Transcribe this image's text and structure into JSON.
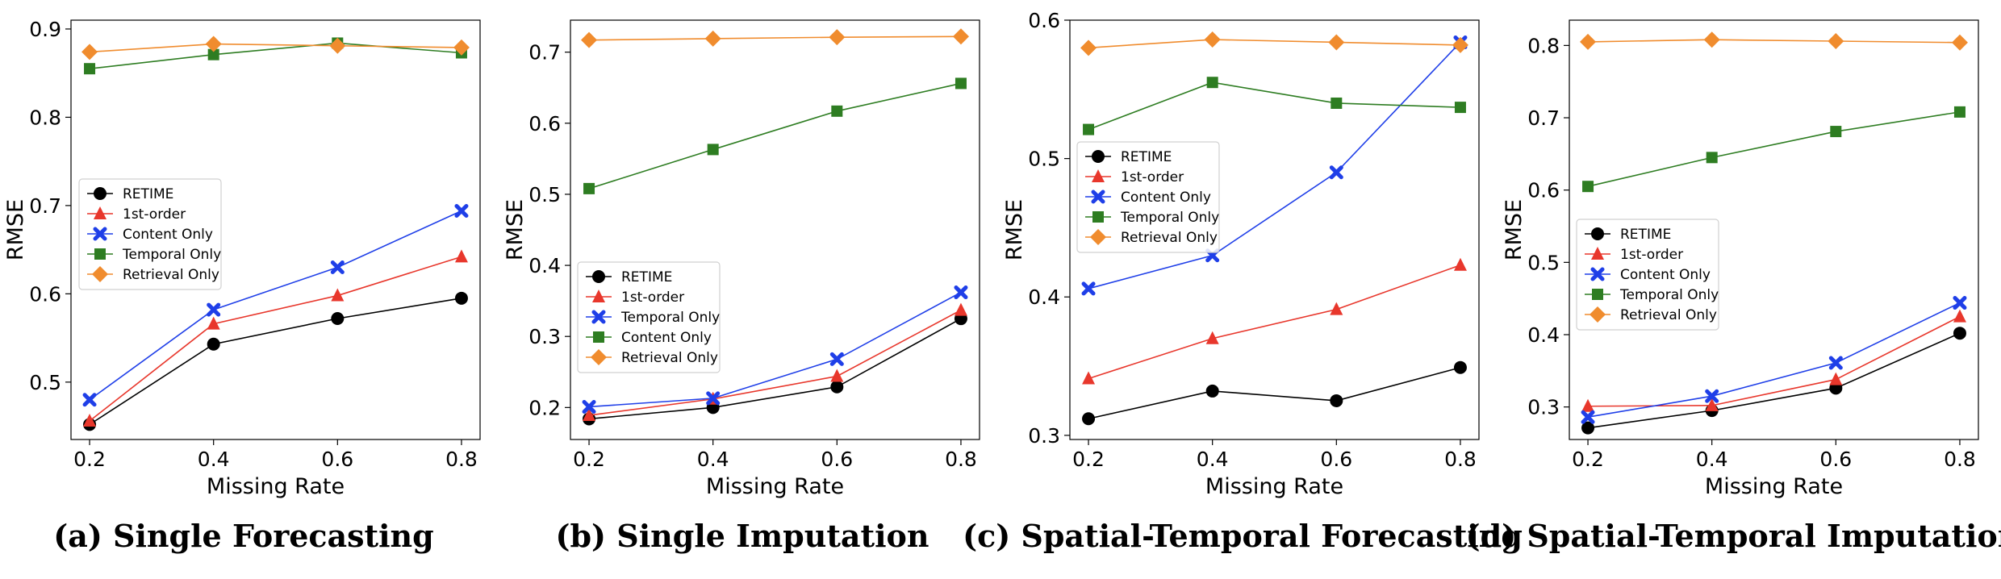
{
  "chart_data": [
    {
      "type": "line",
      "caption": "(a) Single Forecasting",
      "xlabel": "Missing Rate",
      "ylabel": "RMSE",
      "x": [
        0.2,
        0.4,
        0.6,
        0.8
      ],
      "x_ticks": [
        "0.2",
        "0.4",
        "0.6",
        "0.8"
      ],
      "xlim": [
        0.17,
        0.83
      ],
      "ylim": [
        0.435,
        0.91
      ],
      "y_ticks": [
        "0.5",
        "0.6",
        "0.7",
        "0.8",
        "0.9"
      ],
      "legend_position": "center-left",
      "series": [
        {
          "name": "RETIME",
          "values": [
            0.452,
            0.543,
            0.572,
            0.595
          ],
          "color": "#000000",
          "marker": "circle"
        },
        {
          "name": "1st-order",
          "values": [
            0.456,
            0.566,
            0.598,
            0.642
          ],
          "color": "#e8372c",
          "marker": "triangle"
        },
        {
          "name": "Content Only",
          "values": [
            0.48,
            0.582,
            0.63,
            0.694
          ],
          "color": "#1f3fe8",
          "marker": "x"
        },
        {
          "name": "Temporal Only",
          "values": [
            0.855,
            0.871,
            0.884,
            0.873
          ],
          "color": "#2e7d22",
          "marker": "square"
        },
        {
          "name": "Retrieval Only",
          "values": [
            0.874,
            0.883,
            0.881,
            0.879
          ],
          "color": "#f08c2e",
          "marker": "diamond"
        }
      ]
    },
    {
      "type": "line",
      "caption": "(b) Single Imputation",
      "xlabel": "Missing Rate",
      "ylabel": "RMSE",
      "x": [
        0.2,
        0.4,
        0.6,
        0.8
      ],
      "x_ticks": [
        "0.2",
        "0.4",
        "0.6",
        "0.8"
      ],
      "xlim": [
        0.17,
        0.83
      ],
      "ylim": [
        0.155,
        0.745
      ],
      "y_ticks": [
        "0.2",
        "0.3",
        "0.4",
        "0.5",
        "0.6",
        "0.7"
      ],
      "legend_position": "lower-left",
      "series": [
        {
          "name": "RETIME",
          "values": [
            0.184,
            0.2,
            0.229,
            0.325
          ],
          "color": "#000000",
          "marker": "circle"
        },
        {
          "name": "1st-order",
          "values": [
            0.189,
            0.212,
            0.244,
            0.337
          ],
          "color": "#e8372c",
          "marker": "triangle"
        },
        {
          "name": "Temporal Only",
          "values": [
            0.201,
            0.213,
            0.268,
            0.362
          ],
          "color": "#1f3fe8",
          "marker": "x"
        },
        {
          "name": "Content Only",
          "values": [
            0.508,
            0.563,
            0.617,
            0.656
          ],
          "color": "#2e7d22",
          "marker": "square"
        },
        {
          "name": "Retrieval Only",
          "values": [
            0.717,
            0.719,
            0.721,
            0.722
          ],
          "color": "#f08c2e",
          "marker": "diamond"
        }
      ]
    },
    {
      "type": "line",
      "caption": "(c) Spatial-Temporal Forecasting",
      "xlabel": "Missing Rate",
      "ylabel": "RMSE",
      "x": [
        0.2,
        0.4,
        0.6,
        0.8
      ],
      "x_ticks": [
        "0.2",
        "0.4",
        "0.6",
        "0.8"
      ],
      "xlim": [
        0.17,
        0.83
      ],
      "ylim": [
        0.297,
        0.6
      ],
      "y_ticks": [
        "0.3",
        "0.4",
        "0.5",
        "0.6"
      ],
      "legend_position": "upper-left",
      "series": [
        {
          "name": "RETIME",
          "values": [
            0.312,
            0.332,
            0.325,
            0.349
          ],
          "color": "#000000",
          "marker": "circle"
        },
        {
          "name": "1st-order",
          "values": [
            0.341,
            0.37,
            0.391,
            0.423
          ],
          "color": "#e8372c",
          "marker": "triangle"
        },
        {
          "name": "Content Only",
          "values": [
            0.406,
            0.43,
            0.49,
            0.584
          ],
          "color": "#1f3fe8",
          "marker": "x"
        },
        {
          "name": "Temporal Only",
          "values": [
            0.521,
            0.555,
            0.54,
            0.537
          ],
          "color": "#2e7d22",
          "marker": "square"
        },
        {
          "name": "Retrieval Only",
          "values": [
            0.58,
            0.586,
            0.584,
            0.582
          ],
          "color": "#f08c2e",
          "marker": "diamond"
        }
      ]
    },
    {
      "type": "line",
      "caption": "(d) Spatial-Temporal Imputation",
      "xlabel": "Missing Rate",
      "ylabel": "RMSE",
      "x": [
        0.2,
        0.4,
        0.6,
        0.8
      ],
      "x_ticks": [
        "0.2",
        "0.4",
        "0.6",
        "0.8"
      ],
      "xlim": [
        0.17,
        0.83
      ],
      "ylim": [
        0.255,
        0.835
      ],
      "y_ticks": [
        "0.3",
        "0.4",
        "0.5",
        "0.6",
        "0.7",
        "0.8"
      ],
      "legend_position": "center-left",
      "series": [
        {
          "name": "RETIME",
          "values": [
            0.271,
            0.295,
            0.326,
            0.402
          ],
          "color": "#000000",
          "marker": "circle"
        },
        {
          "name": "1st-order",
          "values": [
            0.301,
            0.302,
            0.338,
            0.425
          ],
          "color": "#e8372c",
          "marker": "triangle"
        },
        {
          "name": "Content Only",
          "values": [
            0.286,
            0.315,
            0.361,
            0.444
          ],
          "color": "#1f3fe8",
          "marker": "x"
        },
        {
          "name": "Temporal Only",
          "values": [
            0.605,
            0.645,
            0.681,
            0.708
          ],
          "color": "#2e7d22",
          "marker": "square"
        },
        {
          "name": "Retrieval Only",
          "values": [
            0.805,
            0.808,
            0.806,
            0.804
          ],
          "color": "#f08c2e",
          "marker": "diamond"
        }
      ]
    }
  ]
}
